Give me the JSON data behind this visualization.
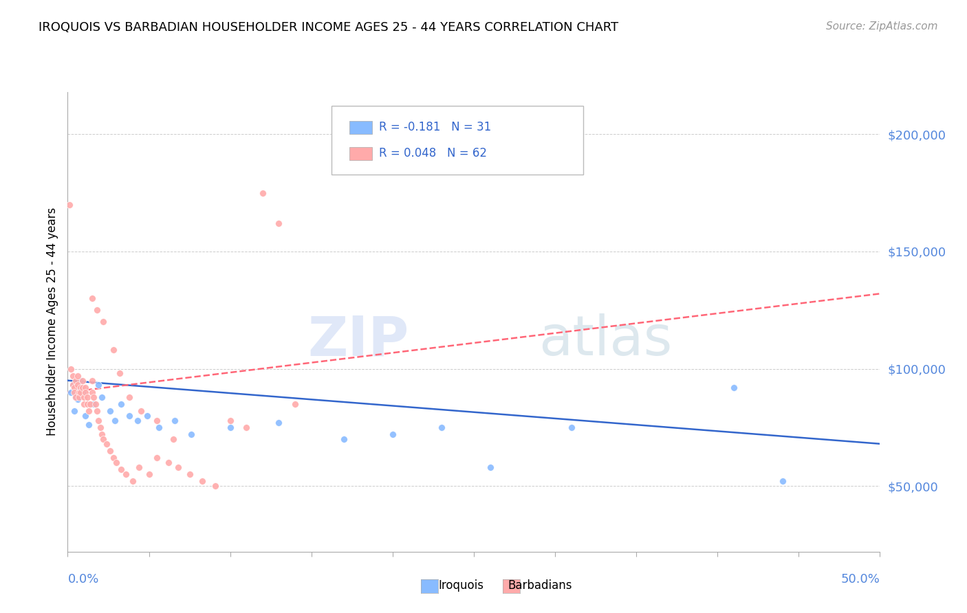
{
  "title": "IROQUOIS VS BARBADIAN HOUSEHOLDER INCOME AGES 25 - 44 YEARS CORRELATION CHART",
  "source": "Source: ZipAtlas.com",
  "ylabel": "Householder Income Ages 25 - 44 years",
  "ytick_values": [
    50000,
    100000,
    150000,
    200000
  ],
  "ytick_labels": [
    "$50,000",
    "$100,000",
    "$150,000",
    "$200,000"
  ],
  "xlim": [
    0.0,
    0.5
  ],
  "ylim": [
    22000,
    218000
  ],
  "legend_iroquois_r": "R = -0.181",
  "legend_iroquois_n": "N = 31",
  "legend_barbadians_r": "R = 0.048",
  "legend_barbadians_n": "N = 62",
  "iroquois_color": "#88bbff",
  "barbadians_color": "#ffaaaa",
  "iroquois_line_color": "#3366cc",
  "barbadians_line_color": "#ff6677",
  "iroquois_trend_x": [
    0.0,
    0.5
  ],
  "iroquois_trend_y": [
    95000,
    68000
  ],
  "barbadians_trend_x": [
    0.0,
    0.5
  ],
  "barbadians_trend_y": [
    90000,
    132000
  ],
  "grid_color": "#cccccc",
  "tick_label_color": "#5588dd",
  "iroquois_x": [
    0.002,
    0.003,
    0.004,
    0.005,
    0.006,
    0.007,
    0.008,
    0.009,
    0.011,
    0.013,
    0.016,
    0.019,
    0.021,
    0.026,
    0.029,
    0.033,
    0.038,
    0.043,
    0.049,
    0.056,
    0.066,
    0.076,
    0.1,
    0.13,
    0.17,
    0.2,
    0.23,
    0.26,
    0.31,
    0.41,
    0.44
  ],
  "iroquois_y": [
    90000,
    93000,
    82000,
    88000,
    87000,
    92000,
    95000,
    90000,
    80000,
    76000,
    85000,
    93000,
    88000,
    82000,
    78000,
    85000,
    80000,
    78000,
    80000,
    75000,
    78000,
    72000,
    75000,
    77000,
    70000,
    72000,
    75000,
    58000,
    75000,
    92000,
    52000
  ],
  "barbadians_x": [
    0.001,
    0.002,
    0.003,
    0.003,
    0.004,
    0.004,
    0.005,
    0.005,
    0.006,
    0.006,
    0.007,
    0.007,
    0.008,
    0.008,
    0.009,
    0.009,
    0.01,
    0.01,
    0.011,
    0.011,
    0.012,
    0.012,
    0.013,
    0.014,
    0.015,
    0.015,
    0.016,
    0.017,
    0.018,
    0.019,
    0.02,
    0.021,
    0.022,
    0.024,
    0.026,
    0.028,
    0.03,
    0.033,
    0.036,
    0.04,
    0.044,
    0.05,
    0.055,
    0.062,
    0.068,
    0.075,
    0.083,
    0.091,
    0.1,
    0.11,
    0.12,
    0.13,
    0.14,
    0.015,
    0.018,
    0.022,
    0.028,
    0.032,
    0.038,
    0.045,
    0.055,
    0.065
  ],
  "barbadians_y": [
    170000,
    100000,
    97000,
    93000,
    92000,
    90000,
    88000,
    95000,
    97000,
    93000,
    90000,
    88000,
    92000,
    90000,
    95000,
    92000,
    88000,
    85000,
    92000,
    90000,
    88000,
    85000,
    82000,
    85000,
    95000,
    90000,
    88000,
    85000,
    82000,
    78000,
    75000,
    72000,
    70000,
    68000,
    65000,
    62000,
    60000,
    57000,
    55000,
    52000,
    58000,
    55000,
    62000,
    60000,
    58000,
    55000,
    52000,
    50000,
    78000,
    75000,
    175000,
    162000,
    85000,
    130000,
    125000,
    120000,
    108000,
    98000,
    88000,
    82000,
    78000,
    70000
  ]
}
